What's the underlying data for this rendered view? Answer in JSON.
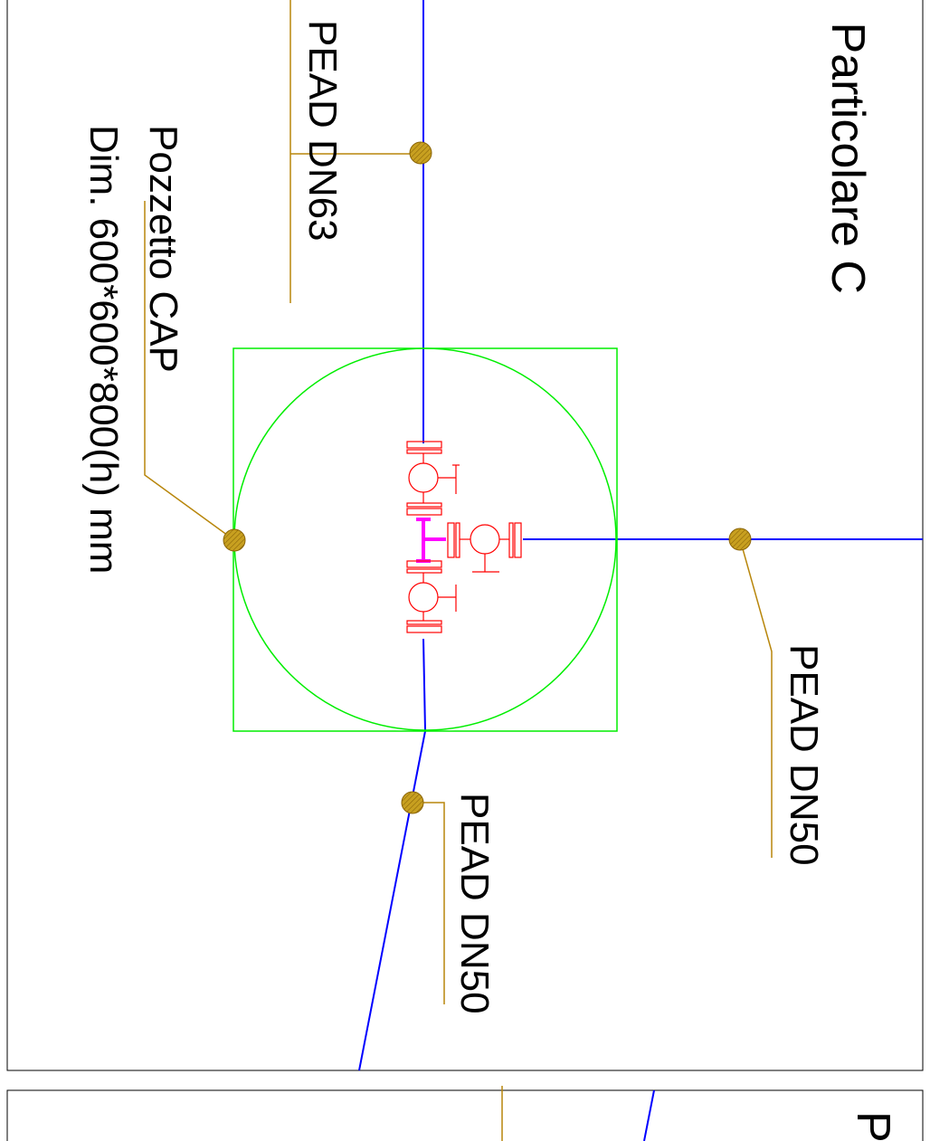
{
  "drawing": {
    "title": "Particolare C",
    "next_title_fragment": "P",
    "labels": {
      "pipe_top": "PEAD DN63",
      "pipe_right": "PEAD DN50",
      "pipe_bottom": "PEAD DN50",
      "manhole_name": "Pozzetto CAP",
      "manhole_dims": "Dim. 600*600*800(h) mm"
    }
  },
  "colors": {
    "background": "#ffffff",
    "frame": "#000000",
    "pipe": "#0000ff",
    "leader": "#b8860b",
    "leader_dot": "#c8a020",
    "manhole": "#00ee00",
    "valve": "#ff0000",
    "tee": "#ff00ff"
  }
}
